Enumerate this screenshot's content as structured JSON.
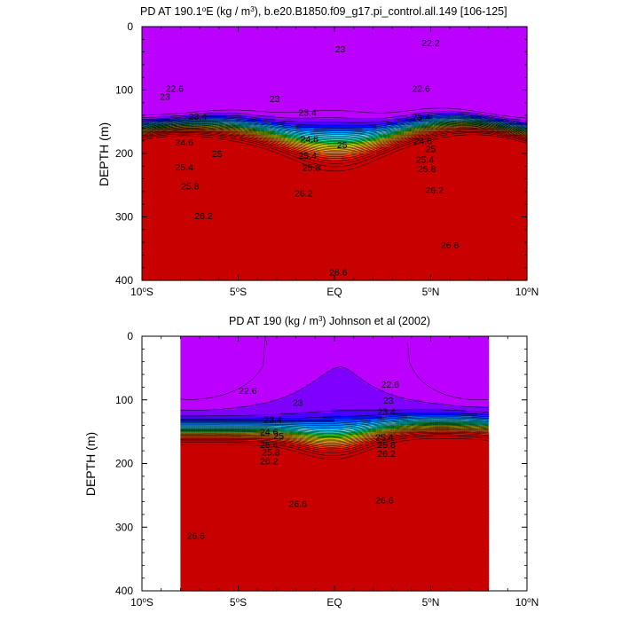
{
  "chart_data": [
    {
      "type": "contour",
      "title_main": "PD AT 190.1",
      "title_deg": "o",
      "title_mid": "E (kg / m",
      "title_exp": "3",
      "title_rest": "), b.e20.B1850.f09_g17.pi_control.all.149 [106-125]",
      "ylabel": "DEPTH (m)",
      "x_ticks": [
        "10",
        "5",
        "EQ",
        "5",
        "10"
      ],
      "x_tick_suffixes": [
        "S",
        "S",
        "",
        "N",
        "N"
      ],
      "x_tick_degree": "o",
      "x_tick_values": [
        -10,
        -5,
        0,
        5,
        10
      ],
      "y_ticks": [
        "0",
        "100",
        "200",
        "300",
        "400"
      ],
      "y_tick_values": [
        0,
        100,
        200,
        300,
        400
      ],
      "xlim": [
        -10,
        10
      ],
      "ylim": [
        400,
        0
      ],
      "y_reversed": true,
      "data_extent_x": [
        -10,
        10
      ],
      "levels": [
        21.4,
        21.6,
        21.8,
        22.0,
        22.2,
        22.4,
        22.6,
        22.8,
        23.0,
        23.2,
        23.4,
        23.6,
        23.8,
        24.0,
        24.2,
        24.4,
        24.6,
        24.8,
        25.0,
        25.2,
        25.4,
        25.6,
        25.8,
        26.0,
        26.2,
        26.4,
        26.6,
        26.8
      ],
      "contour_labels": [
        {
          "text": "22.2",
          "lon": 5.0,
          "depth": 25
        },
        {
          "text": "23",
          "lon": 0.3,
          "depth": 35
        },
        {
          "text": "22.6",
          "lon": -8.3,
          "depth": 97
        },
        {
          "text": "23",
          "lon": -8.8,
          "depth": 110
        },
        {
          "text": "22.6",
          "lon": 4.5,
          "depth": 97
        },
        {
          "text": "23",
          "lon": -3.1,
          "depth": 113
        },
        {
          "text": "23.4",
          "lon": -1.4,
          "depth": 135
        },
        {
          "text": "23.4",
          "lon": 4.5,
          "depth": 142
        },
        {
          "text": "23.4",
          "lon": -7.1,
          "depth": 141
        },
        {
          "text": "25",
          "lon": -6.1,
          "depth": 200
        },
        {
          "text": "24.6",
          "lon": -7.8,
          "depth": 182
        },
        {
          "text": "24.6",
          "lon": -1.3,
          "depth": 177
        },
        {
          "text": "24.6",
          "lon": 4.6,
          "depth": 180
        },
        {
          "text": "25",
          "lon": 0.4,
          "depth": 186
        },
        {
          "text": "25",
          "lon": 5.0,
          "depth": 192
        },
        {
          "text": "25.4",
          "lon": -7.8,
          "depth": 221
        },
        {
          "text": "25.4",
          "lon": -1.4,
          "depth": 203
        },
        {
          "text": "25.4",
          "lon": 4.7,
          "depth": 209
        },
        {
          "text": "25.8",
          "lon": -1.2,
          "depth": 222
        },
        {
          "text": "25.8",
          "lon": 4.8,
          "depth": 224
        },
        {
          "text": "25.8",
          "lon": -7.5,
          "depth": 251
        },
        {
          "text": "26.2",
          "lon": -1.6,
          "depth": 262
        },
        {
          "text": "26.2",
          "lon": 5.2,
          "depth": 257
        },
        {
          "text": "26.2",
          "lon": -6.8,
          "depth": 298
        },
        {
          "text": "26.6",
          "lon": 6.0,
          "depth": 344
        },
        {
          "text": "26.6",
          "lon": 0.2,
          "depth": 387
        }
      ]
    },
    {
      "type": "contour",
      "title_main": "PD AT 190 (kg / m",
      "title_exp": "3",
      "title_rest": ") Johnson et al (2002)",
      "ylabel": "DEPTH (m)",
      "x_ticks": [
        "10",
        "5",
        "EQ",
        "5",
        "10"
      ],
      "x_tick_suffixes": [
        "S",
        "S",
        "",
        "N",
        "N"
      ],
      "x_tick_degree": "o",
      "x_tick_values": [
        -10,
        -5,
        0,
        5,
        10
      ],
      "y_ticks": [
        "0",
        "100",
        "200",
        "300",
        "400"
      ],
      "y_tick_values": [
        0,
        100,
        200,
        300,
        400
      ],
      "xlim": [
        -10,
        10
      ],
      "ylim": [
        400,
        0
      ],
      "y_reversed": true,
      "data_extent_x": [
        -8,
        8
      ],
      "levels": [
        21.4,
        21.6,
        21.8,
        22.0,
        22.2,
        22.4,
        22.6,
        22.8,
        23.0,
        23.2,
        23.4,
        23.6,
        23.8,
        24.0,
        24.2,
        24.4,
        24.6,
        24.8,
        25.0,
        25.2,
        25.4,
        25.6,
        25.8,
        26.0,
        26.2,
        26.4,
        26.6,
        26.8
      ],
      "contour_labels": [
        {
          "text": "22.6",
          "lon": -4.5,
          "depth": 85
        },
        {
          "text": "22.6",
          "lon": 2.9,
          "depth": 75
        },
        {
          "text": "23",
          "lon": -1.9,
          "depth": 104
        },
        {
          "text": "23",
          "lon": 2.8,
          "depth": 100
        },
        {
          "text": "23.4",
          "lon": -3.2,
          "depth": 130
        },
        {
          "text": "23.4",
          "lon": 2.7,
          "depth": 118
        },
        {
          "text": "24.6",
          "lon": -3.4,
          "depth": 150
        },
        {
          "text": "25",
          "lon": -2.9,
          "depth": 156
        },
        {
          "text": "25.4",
          "lon": -3.4,
          "depth": 170
        },
        {
          "text": "25.4",
          "lon": 2.6,
          "depth": 158
        },
        {
          "text": "25.8",
          "lon": -3.3,
          "depth": 182
        },
        {
          "text": "25.8",
          "lon": 2.7,
          "depth": 170
        },
        {
          "text": "26.2",
          "lon": -3.4,
          "depth": 196
        },
        {
          "text": "26.2",
          "lon": 2.7,
          "depth": 184
        },
        {
          "text": "26.6",
          "lon": -1.9,
          "depth": 263
        },
        {
          "text": "26.6",
          "lon": 2.6,
          "depth": 257
        },
        {
          "text": "26.6",
          "lon": -7.2,
          "depth": 313
        }
      ]
    }
  ],
  "colors": {
    "palette": [
      "#bb00ff",
      "#8000ff",
      "#4a00ff",
      "#0010ff",
      "#0048ff",
      "#0078ff",
      "#00a0ff",
      "#00c4ff",
      "#34e0ff",
      "#70f0ff",
      "#00f5e0",
      "#00f0a0",
      "#00e050",
      "#40e000",
      "#a0f000",
      "#f0ff00",
      "#ffe000",
      "#ffc000",
      "#ffa040",
      "#ff9030",
      "#ff7010",
      "#ff5000",
      "#ff3000",
      "#f01000",
      "#dd0000",
      "#c80000"
    ],
    "line": "#000000",
    "background": "#ffffff"
  }
}
